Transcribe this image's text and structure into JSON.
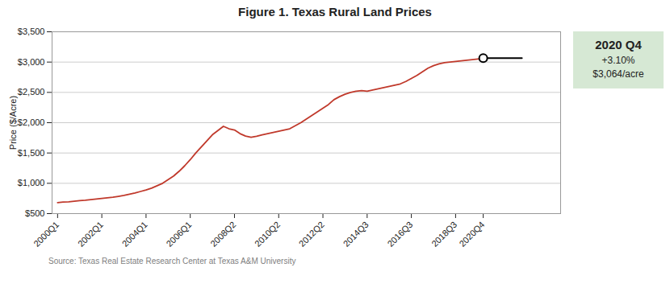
{
  "chart_data": {
    "type": "line",
    "title": "Figure 1. Texas Rural Land Prices",
    "ylabel": "Price ($/Acre)",
    "source": "Source: Texas Real Estate Research Center at Texas A&M University",
    "color": "#c0392b",
    "x": [
      0,
      1,
      2,
      3,
      4,
      5,
      6,
      7,
      8,
      9,
      10,
      11,
      12,
      13,
      14,
      15,
      16,
      17,
      18,
      19,
      20,
      21,
      22,
      23,
      24,
      25,
      26,
      27,
      28,
      29,
      30,
      31,
      32,
      33,
      34,
      35,
      36,
      37,
      38,
      39,
      40,
      41,
      42,
      43,
      44,
      45,
      46,
      47,
      48,
      49,
      50,
      51,
      52,
      53,
      54,
      55,
      56,
      57,
      58,
      59,
      60,
      61,
      62,
      63,
      64,
      65,
      66,
      67,
      68,
      69,
      70,
      71,
      72,
      73,
      74,
      75,
      76,
      77
    ],
    "values": [
      680,
      690,
      695,
      705,
      715,
      720,
      730,
      740,
      750,
      760,
      770,
      785,
      800,
      820,
      840,
      865,
      890,
      920,
      960,
      1000,
      1060,
      1120,
      1200,
      1290,
      1390,
      1500,
      1600,
      1700,
      1800,
      1870,
      1940,
      1900,
      1880,
      1820,
      1780,
      1760,
      1775,
      1800,
      1820,
      1840,
      1860,
      1880,
      1900,
      1950,
      2000,
      2060,
      2120,
      2180,
      2240,
      2300,
      2380,
      2430,
      2470,
      2500,
      2520,
      2530,
      2520,
      2540,
      2560,
      2580,
      2600,
      2620,
      2640,
      2680,
      2730,
      2780,
      2840,
      2900,
      2940,
      2970,
      2990,
      3000,
      3010,
      3020,
      3030,
      3040,
      3050,
      3060
    ],
    "end_marker": {
      "x": 77,
      "y": 3064,
      "x_end": 84,
      "color": "#000000"
    },
    "annotation": {
      "title": "2020 Q4",
      "text": [
        "+3.10%",
        "$3,064/acre"
      ],
      "color": "#d6e8d4"
    },
    "xlim": [
      -1,
      91
    ],
    "xticks": [
      {
        "value": 0,
        "label": "2000Q1"
      },
      {
        "value": 8,
        "label": "2002Q1"
      },
      {
        "value": 16,
        "label": "2004Q1"
      },
      {
        "value": 24,
        "label": "2006Q1"
      },
      {
        "value": 32,
        "label": "2008Q2"
      },
      {
        "value": 40,
        "label": "2010Q2"
      },
      {
        "value": 48,
        "label": "2012Q2"
      },
      {
        "value": 56,
        "label": "2014Q3"
      },
      {
        "value": 64,
        "label": "2016Q3"
      },
      {
        "value": 72,
        "label": "2018Q3"
      },
      {
        "value": 77,
        "label": "2020Q4"
      }
    ],
    "ylim": [
      500,
      3500
    ],
    "yticks": [
      {
        "value": 500,
        "label": "$500"
      },
      {
        "value": 1000,
        "label": "$1,000"
      },
      {
        "value": 1500,
        "label": "$1,500"
      },
      {
        "value": 2000,
        "label": "$2,000"
      },
      {
        "value": 2500,
        "label": "$2,500"
      },
      {
        "value": 3000,
        "label": "$3,000"
      },
      {
        "value": 3500,
        "label": "$3,500"
      }
    ],
    "grid": true
  }
}
